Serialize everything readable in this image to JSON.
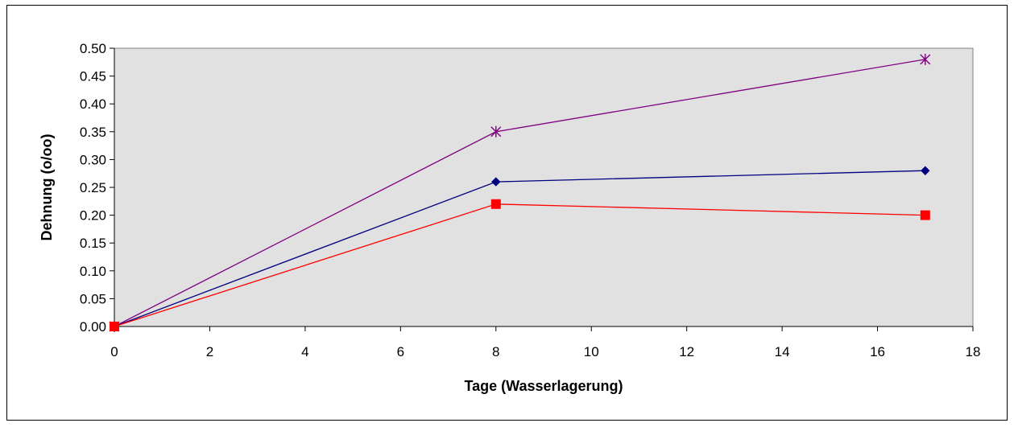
{
  "chart_data": {
    "type": "line",
    "title": "",
    "xlabel": "Tage (Wasserlagerung)",
    "ylabel": "Dehnung (o/oo)",
    "xlim": [
      0,
      18
    ],
    "ylim": [
      0,
      0.5
    ],
    "x_ticks": [
      0,
      2,
      4,
      6,
      8,
      10,
      12,
      14,
      16,
      18
    ],
    "y_ticks": [
      "0.00",
      "0.05",
      "0.10",
      "0.15",
      "0.20",
      "0.25",
      "0.30",
      "0.35",
      "0.40",
      "0.45",
      "0.50"
    ],
    "grid": false,
    "legend": "none",
    "plot_background": "#E1E1E1",
    "series": [
      {
        "x": [
          0,
          8,
          17
        ],
        "values": [
          0,
          0.35,
          0.48
        ],
        "color": "#800080",
        "marker": "asterisk"
      },
      {
        "x": [
          0,
          8,
          17
        ],
        "values": [
          0,
          0.26,
          0.28
        ],
        "color": "#000080",
        "marker": "diamond"
      },
      {
        "x": [
          0,
          8,
          17
        ],
        "values": [
          0,
          0.22,
          0.2
        ],
        "color": "#FF0000",
        "marker": "square"
      }
    ]
  }
}
